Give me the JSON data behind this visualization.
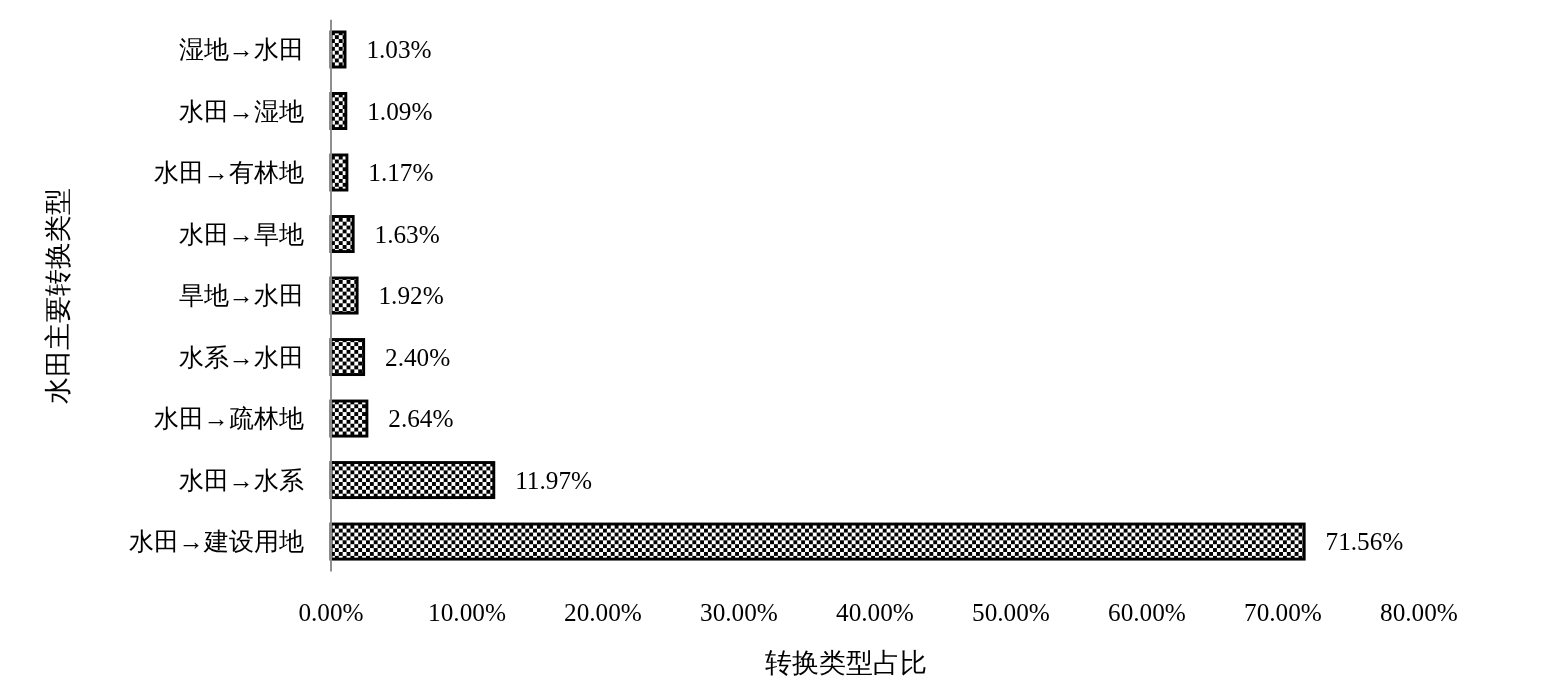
{
  "chart_data": {
    "type": "bar",
    "orientation": "horizontal",
    "xlabel": "转换类型占比",
    "ylabel": "水田主要转换类型",
    "categories": [
      "湿地→水田",
      "水田→湿地",
      "水田→有林地",
      "水田→旱地",
      "旱地→水田",
      "水系→水田",
      "水田→疏林地",
      "水田→水系",
      "水田→建设用地"
    ],
    "values": [
      1.03,
      1.09,
      1.17,
      1.63,
      1.92,
      2.4,
      2.64,
      11.97,
      71.56
    ],
    "value_labels": [
      "1.03%",
      "1.09%",
      "1.17%",
      "1.63%",
      "1.92%",
      "2.40%",
      "2.64%",
      "11.97%",
      "71.56%"
    ],
    "color": "#000000",
    "xlim": [
      0,
      80
    ],
    "xticks": [
      {
        "value": 0,
        "label": "0.00%"
      },
      {
        "value": 10,
        "label": "10.00%"
      },
      {
        "value": 20,
        "label": "20.00%"
      },
      {
        "value": 30,
        "label": "30.00%"
      },
      {
        "value": 40,
        "label": "40.00%"
      },
      {
        "value": 50,
        "label": "50.00%"
      },
      {
        "value": 60,
        "label": "60.00%"
      },
      {
        "value": 70,
        "label": "70.00%"
      },
      {
        "value": 80,
        "label": "80.00%"
      }
    ],
    "grid": false
  }
}
